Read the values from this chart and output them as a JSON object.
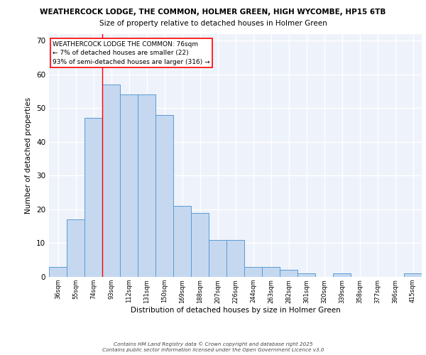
{
  "title_line1": "WEATHERCOCK LODGE, THE COMMON, HOLMER GREEN, HIGH WYCOMBE, HP15 6TB",
  "title_line2": "Size of property relative to detached houses in Holmer Green",
  "xlabel": "Distribution of detached houses by size in Holmer Green",
  "ylabel": "Number of detached properties",
  "categories": [
    "36sqm",
    "55sqm",
    "74sqm",
    "93sqm",
    "112sqm",
    "131sqm",
    "150sqm",
    "169sqm",
    "188sqm",
    "207sqm",
    "226sqm",
    "244sqm",
    "263sqm",
    "282sqm",
    "301sqm",
    "320sqm",
    "339sqm",
    "358sqm",
    "377sqm",
    "396sqm",
    "415sqm"
  ],
  "values": [
    3,
    17,
    47,
    57,
    54,
    54,
    48,
    21,
    19,
    11,
    11,
    3,
    3,
    2,
    1,
    0,
    1,
    0,
    0,
    0,
    1
  ],
  "bar_color": "#c5d8f0",
  "bar_edge_color": "#5b9bd5",
  "ylim": [
    0,
    72
  ],
  "yticks": [
    0,
    10,
    20,
    30,
    40,
    50,
    60,
    70
  ],
  "red_line_x": 2.5,
  "annotation_title": "WEATHERCOCK LODGE THE COMMON: 76sqm",
  "annotation_line2": "← 7% of detached houses are smaller (22)",
  "annotation_line3": "93% of semi-detached houses are larger (316) →",
  "footer_line1": "Contains HM Land Registry data © Crown copyright and database right 2025",
  "footer_line2": "Contains public sector information licensed under the Open Government Licence v3.0",
  "bg_color": "#eef2fa",
  "grid_color": "#ffffff"
}
